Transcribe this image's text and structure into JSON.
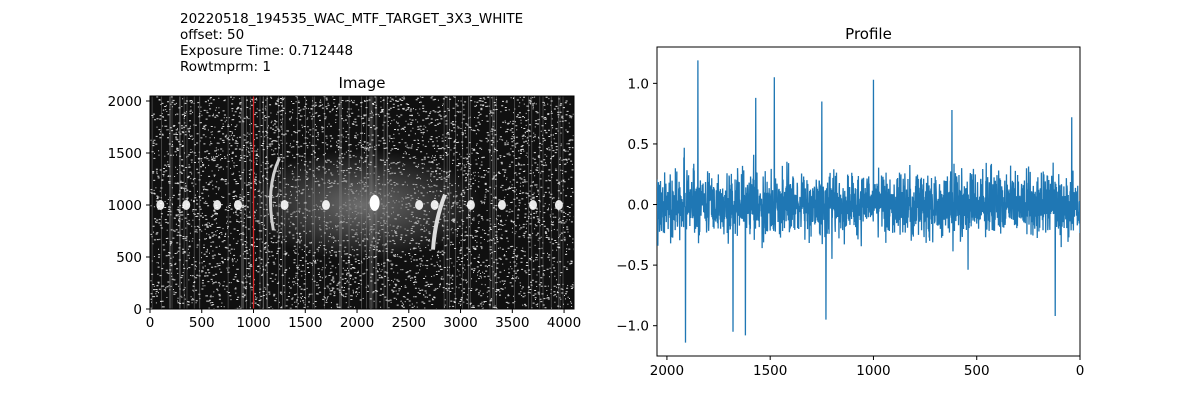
{
  "header": {
    "lines": [
      "20220518_194535_WAC_MTF_TARGET_3X3_WHITE",
      "offset: 50",
      "Exposure Time: 0.712448",
      "Rowtmprm: 1"
    ]
  },
  "chart_data": [
    {
      "type": "heatmap",
      "title": "Image",
      "colormap": "gray",
      "xlim": [
        0,
        4096
      ],
      "ylim": [
        0,
        2048
      ],
      "xticks": [
        0,
        500,
        1000,
        1500,
        2000,
        2500,
        3000,
        3500,
        4000
      ],
      "yticks": [
        0,
        500,
        1000,
        1500,
        2000
      ],
      "marker_line": {
        "x": 1000,
        "color": "#d62728"
      },
      "grid": false
    },
    {
      "type": "line",
      "title": "Profile",
      "xlim": [
        2048,
        0
      ],
      "ylim": [
        -1.25,
        1.3
      ],
      "xticks": [
        2000,
        1500,
        1000,
        500,
        0
      ],
      "yticks": [
        1.0,
        0.5,
        0.0,
        -0.5,
        -1.0
      ],
      "ytick_labels": [
        "1.0",
        "0.5",
        "0.0",
        "−0.5",
        "−1.0"
      ],
      "series": [
        {
          "color": "#1f77b4",
          "x_range": [
            2048,
            0
          ],
          "amplitude_typical": 0.45,
          "notable_points": [
            {
              "x": 1850,
              "y": 1.19
            },
            {
              "x": 1910,
              "y": -1.14
            },
            {
              "x": 1620,
              "y": -1.08
            },
            {
              "x": 1680,
              "y": -1.05
            },
            {
              "x": 1480,
              "y": 1.05
            },
            {
              "x": 1230,
              "y": -0.95
            },
            {
              "x": 1000,
              "y": 1.03
            },
            {
              "x": 1570,
              "y": 0.88
            },
            {
              "x": 1250,
              "y": 0.85
            },
            {
              "x": 620,
              "y": 0.78
            },
            {
              "x": 120,
              "y": -0.92
            },
            {
              "x": 40,
              "y": 0.72
            }
          ]
        }
      ]
    }
  ]
}
